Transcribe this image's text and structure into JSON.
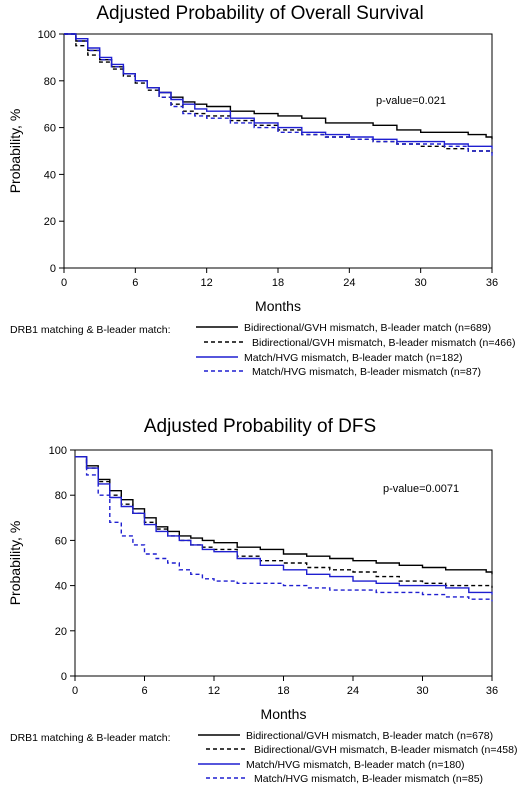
{
  "chart_data": [
    {
      "type": "line",
      "title": "Adjusted Probability of Overall Survival",
      "xlabel": "Months",
      "ylabel": "Probability, %",
      "xlim": [
        0,
        36
      ],
      "ylim": [
        0,
        100
      ],
      "xticks": [
        0,
        6,
        12,
        18,
        24,
        30,
        36
      ],
      "yticks": [
        0,
        20,
        40,
        60,
        80,
        100
      ],
      "annotation": "p-value=0.021",
      "legend_title": "DRB1 matching & B-leader match:",
      "legend_position": "bottom",
      "series": [
        {
          "name": "Bidirectional/GVH mismatch, B-leader match (n=689)",
          "color": "#000000",
          "dashed": false,
          "x": [
            0,
            1,
            2,
            3,
            4,
            5,
            6,
            7,
            8,
            9,
            10,
            11,
            12,
            14,
            16,
            18,
            20,
            22,
            24,
            26,
            28,
            30,
            32,
            34,
            35.5,
            36
          ],
          "y": [
            100,
            97,
            93,
            89,
            86,
            83,
            80,
            77,
            75,
            73,
            71,
            70,
            69,
            67,
            66,
            65,
            64,
            62,
            62,
            61,
            59,
            58,
            58,
            57,
            56,
            55
          ]
        },
        {
          "name": "Bidirectional/GVH mismatch, B-leader mismatch (n=466)",
          "color": "#000000",
          "dashed": true,
          "x": [
            0,
            1,
            2,
            3,
            4,
            5,
            6,
            7,
            8,
            9,
            10,
            11,
            12,
            14,
            16,
            18,
            20,
            22,
            24,
            26,
            28,
            30,
            32,
            34,
            36
          ],
          "y": [
            100,
            95,
            91,
            88,
            85,
            82,
            79,
            76,
            73,
            70,
            67,
            66,
            65,
            63,
            61,
            59,
            57,
            56,
            55,
            54,
            53,
            52,
            51,
            50,
            49
          ]
        },
        {
          "name": "Match/HVG mismatch, B-leader match (n=182)",
          "color": "#1f1fd0",
          "dashed": false,
          "x": [
            0,
            1,
            2,
            3,
            4,
            5,
            6,
            7,
            8,
            9,
            10,
            11,
            12,
            14,
            16,
            18,
            20,
            22,
            24,
            26,
            28,
            30,
            32,
            34,
            36
          ],
          "y": [
            100,
            98,
            94,
            90,
            87,
            83,
            80,
            77,
            75,
            72,
            70,
            68,
            67,
            64,
            62,
            60,
            58,
            57,
            56,
            55,
            54,
            54,
            53,
            52,
            51
          ]
        },
        {
          "name": "Match/HVG mismatch, B-leader mismatch (n=87)",
          "color": "#1f1fd0",
          "dashed": true,
          "x": [
            0,
            1,
            2,
            3,
            4,
            5,
            6,
            7,
            8,
            9,
            10,
            11,
            12,
            14,
            16,
            18,
            20,
            22,
            24,
            26,
            28,
            30,
            32,
            34,
            36
          ],
          "y": [
            100,
            97,
            93,
            89,
            86,
            83,
            80,
            77,
            73,
            69,
            66,
            65,
            64,
            62,
            60,
            58,
            57,
            56,
            55,
            54,
            53,
            53,
            52,
            50,
            48
          ]
        }
      ]
    },
    {
      "type": "line",
      "title": "Adjusted Probability of DFS",
      "xlabel": "Months",
      "ylabel": "Probability, %",
      "xlim": [
        0,
        36
      ],
      "ylim": [
        0,
        100
      ],
      "xticks": [
        0,
        6,
        12,
        18,
        24,
        30,
        36
      ],
      "yticks": [
        0,
        20,
        40,
        60,
        80,
        100
      ],
      "annotation": "p-value=0.0071",
      "legend_title": "DRB1 matching & B-leader match:",
      "legend_position": "bottom",
      "series": [
        {
          "name": "Bidirectional/GVH mismatch, B-leader match (n=678)",
          "color": "#000000",
          "dashed": false,
          "x": [
            0,
            1,
            2,
            3,
            4,
            5,
            6,
            7,
            8,
            9,
            10,
            11,
            12,
            14,
            16,
            18,
            20,
            22,
            24,
            26,
            28,
            30,
            32,
            34,
            35.5,
            36
          ],
          "y": [
            97,
            93,
            87,
            82,
            78,
            74,
            70,
            66,
            64,
            62,
            61,
            60,
            59,
            57,
            56,
            54,
            53,
            52,
            51,
            50,
            49,
            48,
            47,
            47,
            46,
            45
          ]
        },
        {
          "name": "Bidirectional/GVH mismatch, B-leader mismatch (n=458)",
          "color": "#000000",
          "dashed": true,
          "x": [
            0,
            1,
            2,
            3,
            4,
            5,
            6,
            7,
            8,
            9,
            10,
            11,
            12,
            14,
            16,
            18,
            20,
            22,
            24,
            26,
            28,
            30,
            32,
            34,
            36
          ],
          "y": [
            97,
            92,
            86,
            80,
            76,
            72,
            68,
            65,
            62,
            60,
            58,
            57,
            56,
            53,
            51,
            50,
            48,
            47,
            46,
            44,
            42,
            41,
            40,
            40,
            39
          ]
        },
        {
          "name": "Match/HVG mismatch, B-leader match (n=180)",
          "color": "#1f1fd0",
          "dashed": false,
          "x": [
            0,
            1,
            2,
            3,
            4,
            5,
            6,
            7,
            8,
            9,
            10,
            11,
            12,
            14,
            16,
            18,
            20,
            22,
            24,
            26,
            28,
            30,
            32,
            34,
            36
          ],
          "y": [
            97,
            92,
            85,
            79,
            75,
            72,
            67,
            64,
            62,
            60,
            58,
            56,
            55,
            52,
            49,
            47,
            45,
            44,
            42,
            41,
            40,
            40,
            39,
            37,
            36
          ]
        },
        {
          "name": "Match/HVG mismatch, B-leader mismatch (n=85)",
          "color": "#1f1fd0",
          "dashed": true,
          "x": [
            0,
            1,
            2,
            3,
            4,
            5,
            6,
            7,
            8,
            9,
            10,
            11,
            12,
            14,
            16,
            18,
            20,
            22,
            24,
            26,
            28,
            30,
            32,
            34,
            36
          ],
          "y": [
            97,
            89,
            80,
            68,
            62,
            58,
            54,
            52,
            50,
            47,
            45,
            43,
            42,
            41,
            41,
            40,
            39,
            38,
            38,
            37,
            37,
            36,
            35,
            34,
            33
          ]
        }
      ]
    }
  ]
}
